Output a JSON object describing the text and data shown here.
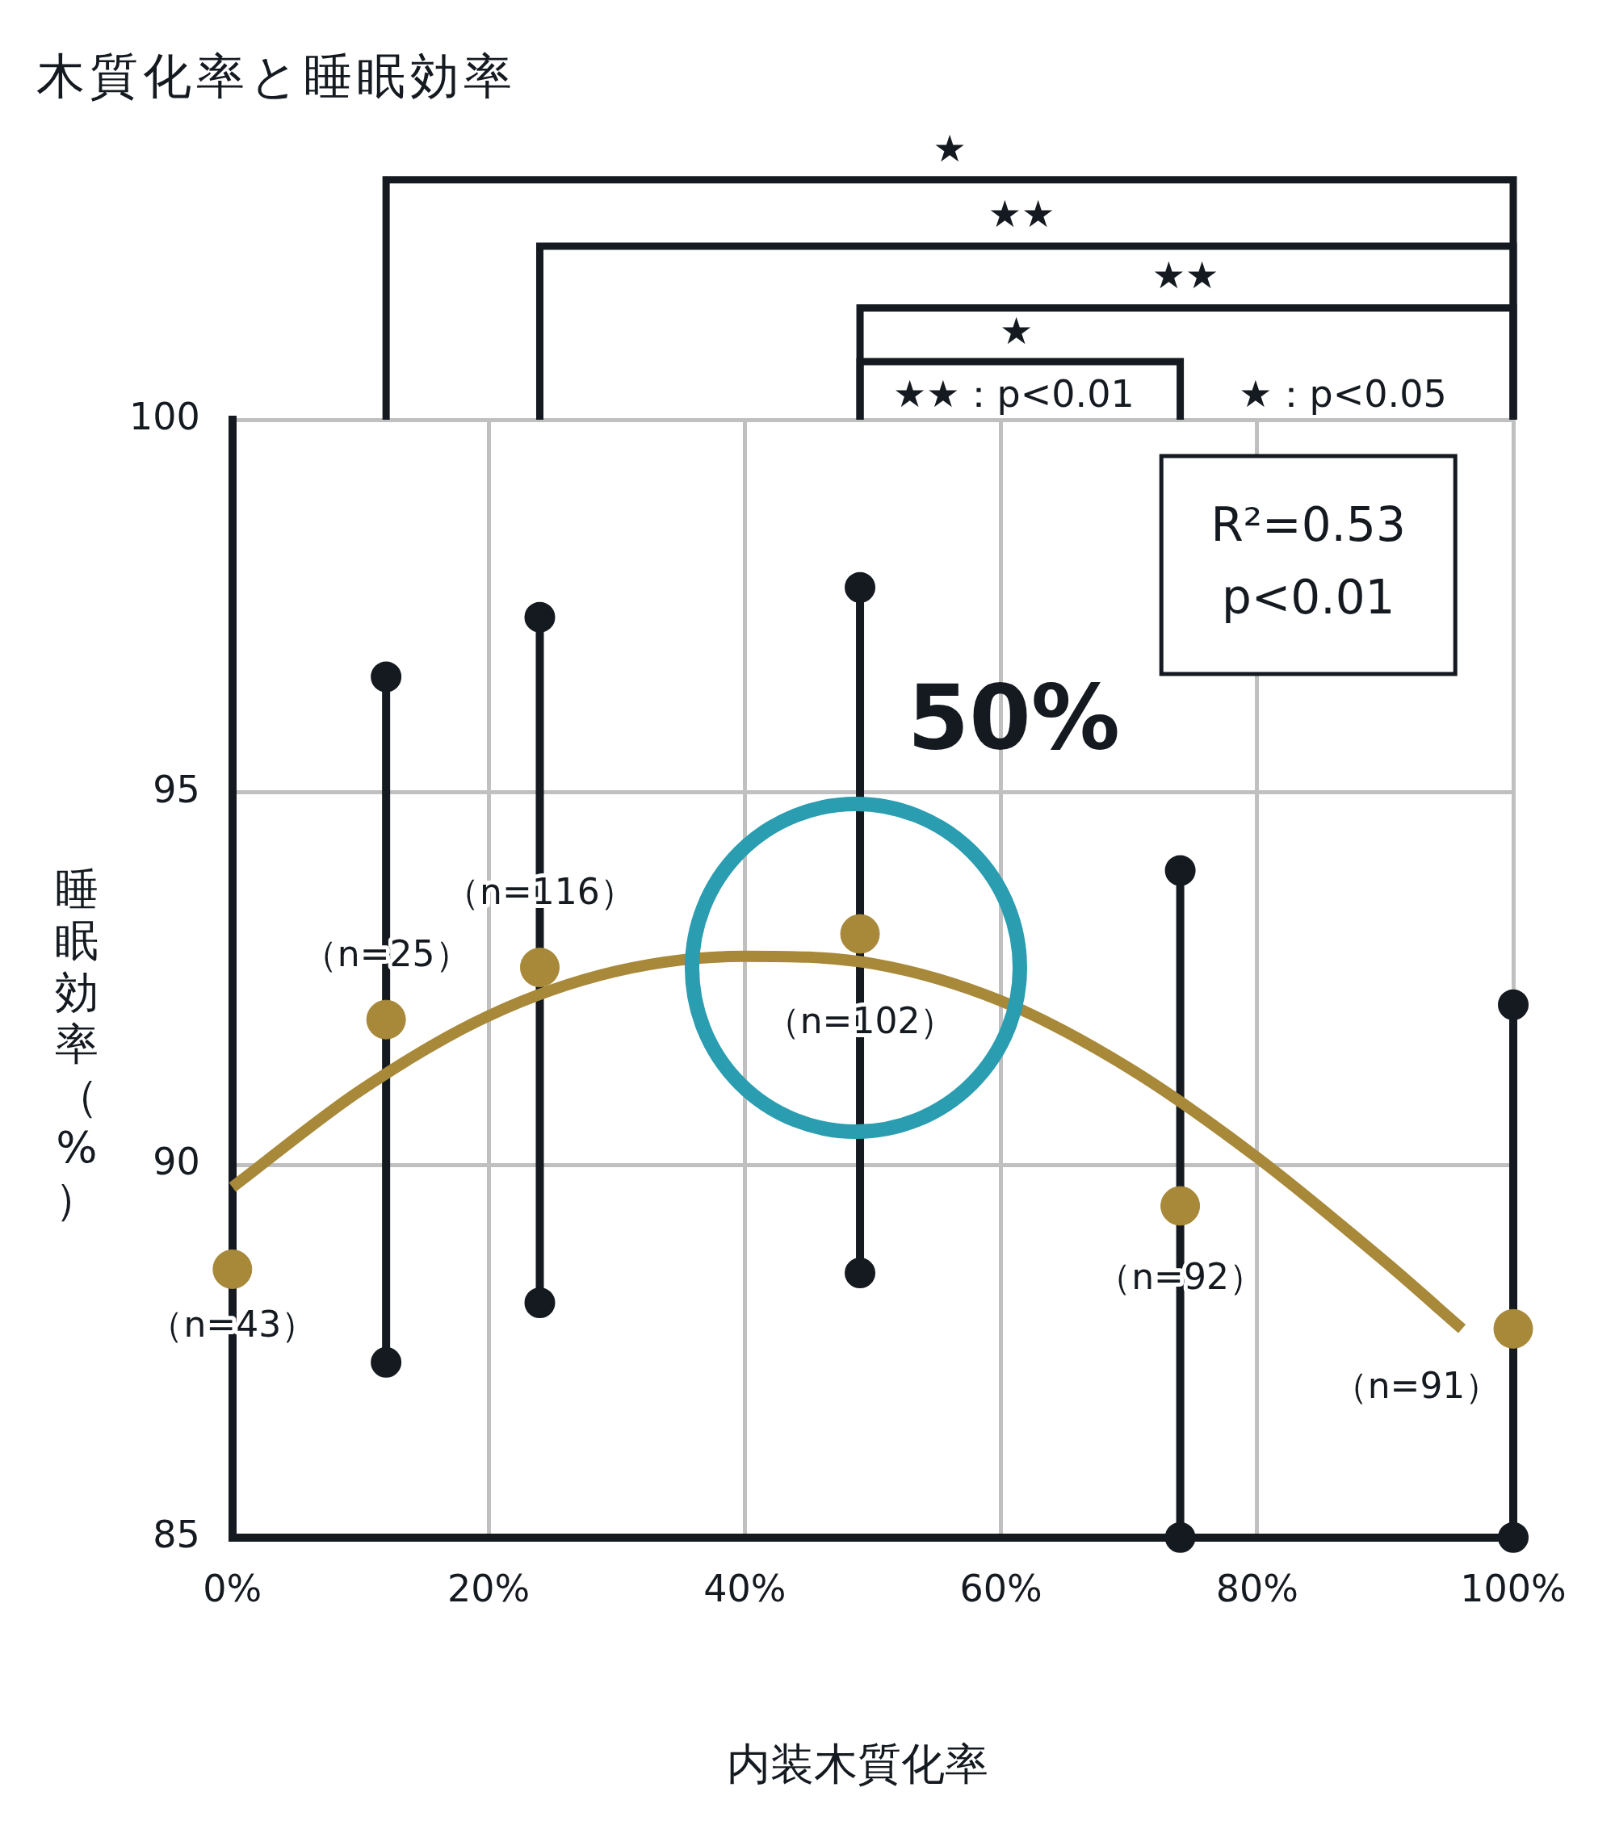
{
  "chart_data": {
    "type": "scatter",
    "title": "木質化率と睡眠効率",
    "xlabel": "内装木質化率",
    "ylabel": "睡眠効率（%）",
    "xlim": [
      0,
      100
    ],
    "xticks": [
      {
        "value": 0,
        "label": "0%"
      },
      {
        "value": 20,
        "label": "20%"
      },
      {
        "value": 40,
        "label": "40%"
      },
      {
        "value": 60,
        "label": "60%"
      },
      {
        "value": 80,
        "label": "80%"
      },
      {
        "value": 100,
        "label": "100%"
      }
    ],
    "ylim": [
      85,
      100
    ],
    "yticks": [
      85,
      90,
      95,
      100
    ],
    "grid": true,
    "legend": false,
    "series": [
      {
        "color": "#a8893a",
        "marker": "circle",
        "x": [
          0,
          12,
          24,
          49,
          74,
          100
        ],
        "values": [
          88.6,
          91.95,
          92.65,
          93.1,
          89.45,
          87.8
        ]
      },
      {
        "type": "line",
        "color": "#a8893a",
        "marker": "none",
        "x": [
          0,
          10,
          20,
          30,
          40,
          50,
          60,
          70,
          80,
          90,
          96
        ],
        "values": [
          89.7,
          91.0,
          92.0,
          92.6,
          92.8,
          92.7,
          92.2,
          91.3,
          90.1,
          88.7,
          87.8
        ]
      },
      {
        "type": "line",
        "color": "#141a20",
        "marker": "circle",
        "x": [
          12,
          12
        ],
        "values": [
          87.35,
          96.55
        ]
      },
      {
        "type": "line",
        "color": "#141a20",
        "marker": "circle",
        "x": [
          24,
          24
        ],
        "values": [
          88.15,
          97.35
        ]
      },
      {
        "type": "line",
        "color": "#141a20",
        "marker": "circle",
        "x": [
          49,
          49
        ],
        "values": [
          88.55,
          97.75
        ]
      },
      {
        "type": "line",
        "color": "#141a20",
        "marker": "circle",
        "x": [
          74,
          74
        ],
        "values": [
          85,
          93.95
        ]
      },
      {
        "type": "line",
        "color": "#141a20",
        "marker": "circle",
        "x": [
          100,
          100
        ],
        "values": [
          85,
          92.15
        ]
      }
    ],
    "annotations": [
      "★",
      "★★",
      "★★",
      "★",
      "★★：p<0.01",
      "★：p<0.05",
      "R²=0.53\np<0.01",
      "50%",
      {
        "text": "（n=43）",
        "x": 0,
        "y": 88.6
      },
      {
        "text": "（n=25）",
        "x": 12,
        "y": 91.95
      },
      {
        "text": "（n=116）",
        "x": 24,
        "y": 92.65
      },
      {
        "text": "（n=102）",
        "x": 49,
        "y": 93.1
      },
      {
        "text": "（n=92）",
        "x": 74,
        "y": 89.45
      },
      {
        "text": "（n=91）",
        "x": 100,
        "y": 87.8
      }
    ]
  }
}
